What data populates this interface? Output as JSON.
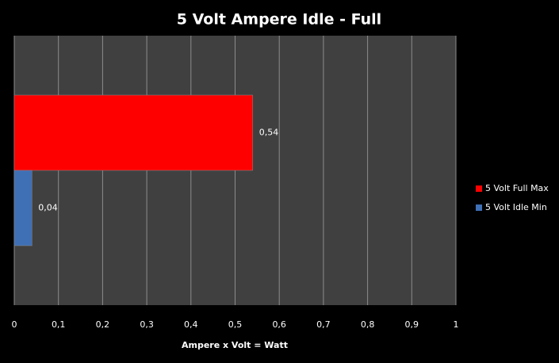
{
  "chart_data": {
    "type": "bar",
    "orientation": "horizontal",
    "title": "5 Volt Ampere Idle - Full",
    "xlabel": "Ampere x Volt = Watt",
    "categories": [
      null
    ],
    "series": [
      {
        "name": "5 Volt Full Max",
        "color": "#ff0000",
        "values": [
          0.54
        ],
        "value_labels": [
          "0,54"
        ]
      },
      {
        "name": "5 Volt Idle Min",
        "color": "#3f6fb5",
        "values": [
          0.04
        ],
        "value_labels": [
          "0,04"
        ]
      }
    ],
    "xlim": [
      0,
      1
    ],
    "xticks": [
      0,
      {
        "value": 0.1,
        "label": "0,1"
      },
      {
        "value": 0.2,
        "label": "0,2"
      },
      {
        "value": 0.3,
        "label": "0,3"
      },
      {
        "value": 0.4,
        "label": "0,4"
      },
      {
        "value": 0.5,
        "label": "0,5"
      },
      {
        "value": 0.6,
        "label": "0,6"
      },
      {
        "value": 0.7,
        "label": "0,7"
      },
      {
        "value": 0.8,
        "label": "0,8"
      },
      {
        "value": 0.9,
        "label": "0,9"
      },
      1
    ],
    "grid": true,
    "legend": "right"
  }
}
